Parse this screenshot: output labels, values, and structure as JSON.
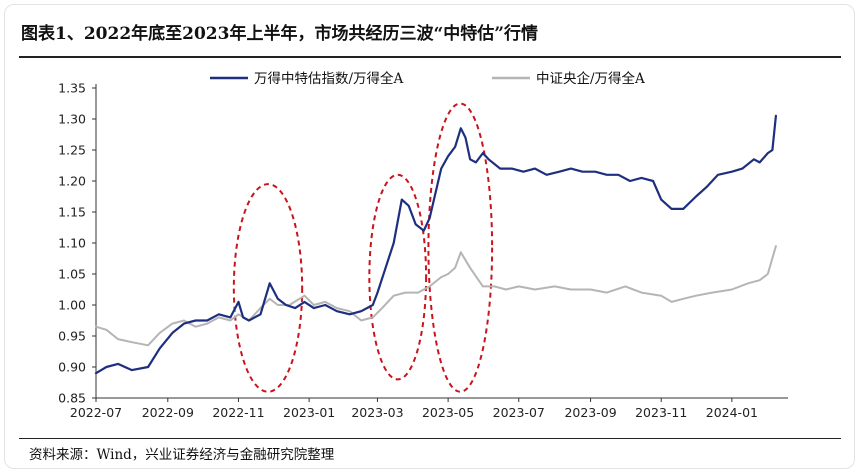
{
  "title": "图表1、2022年底至2023年上半年，市场共经历三波“中特估”行情",
  "source": "资料来源：Wind，兴业证券经济与金融研究院整理",
  "chart_data": {
    "type": "line",
    "x_ticks": [
      "2022-07",
      "2022-09",
      "2022-11",
      "2023-01",
      "2023-03",
      "2023-05",
      "2023-07",
      "2023-09",
      "2023-11",
      "2024-01"
    ],
    "y_ticks": [
      "0.85",
      "0.90",
      "0.95",
      "1.00",
      "1.05",
      "1.10",
      "1.15",
      "1.20",
      "1.25",
      "1.30",
      "1.35"
    ],
    "ylim": [
      0.85,
      1.35
    ],
    "xlim": [
      "2022-07-01",
      "2024-02-15"
    ],
    "grid": false,
    "legend_position": "top",
    "series": [
      {
        "name": "万得中特估指数/万得全A",
        "color": "#1f2f7f",
        "x": [
          "2022-07-01",
          "2022-07-10",
          "2022-07-20",
          "2022-08-01",
          "2022-08-15",
          "2022-08-25",
          "2022-09-05",
          "2022-09-15",
          "2022-09-25",
          "2022-10-05",
          "2022-10-15",
          "2022-10-25",
          "2022-11-01",
          "2022-11-05",
          "2022-11-10",
          "2022-11-20",
          "2022-11-28",
          "2022-12-05",
          "2022-12-12",
          "2022-12-20",
          "2022-12-28",
          "2023-01-05",
          "2023-01-15",
          "2023-01-25",
          "2023-02-05",
          "2023-02-15",
          "2023-02-25",
          "2023-03-01",
          "2023-03-08",
          "2023-03-15",
          "2023-03-22",
          "2023-03-28",
          "2023-04-03",
          "2023-04-10",
          "2023-04-15",
          "2023-04-20",
          "2023-04-25",
          "2023-05-01",
          "2023-05-07",
          "2023-05-12",
          "2023-05-16",
          "2023-05-20",
          "2023-05-25",
          "2023-05-31",
          "2023-06-05",
          "2023-06-15",
          "2023-06-25",
          "2023-07-05",
          "2023-07-15",
          "2023-07-25",
          "2023-08-05",
          "2023-08-15",
          "2023-08-25",
          "2023-09-05",
          "2023-09-15",
          "2023-09-25",
          "2023-10-05",
          "2023-10-15",
          "2023-10-25",
          "2023-11-01",
          "2023-11-10",
          "2023-11-20",
          "2023-12-01",
          "2023-12-10",
          "2023-12-20",
          "2024-01-01",
          "2024-01-10",
          "2024-01-20",
          "2024-01-25",
          "2024-02-01",
          "2024-02-05",
          "2024-02-08"
        ],
        "values": [
          0.89,
          0.9,
          0.905,
          0.895,
          0.9,
          0.93,
          0.955,
          0.97,
          0.975,
          0.975,
          0.985,
          0.98,
          1.005,
          0.98,
          0.975,
          0.985,
          1.035,
          1.01,
          1.0,
          0.995,
          1.005,
          0.995,
          1.0,
          0.99,
          0.985,
          0.99,
          1.0,
          1.02,
          1.06,
          1.1,
          1.17,
          1.16,
          1.13,
          1.12,
          1.14,
          1.18,
          1.22,
          1.24,
          1.255,
          1.285,
          1.27,
          1.235,
          1.23,
          1.245,
          1.235,
          1.22,
          1.22,
          1.215,
          1.22,
          1.21,
          1.215,
          1.22,
          1.215,
          1.215,
          1.21,
          1.21,
          1.2,
          1.205,
          1.2,
          1.17,
          1.155,
          1.155,
          1.175,
          1.19,
          1.21,
          1.215,
          1.22,
          1.235,
          1.23,
          1.245,
          1.25,
          1.305
        ]
      },
      {
        "name": "中证央企/万得全A",
        "color": "#b5b5b5",
        "x": [
          "2022-07-01",
          "2022-07-10",
          "2022-07-20",
          "2022-08-01",
          "2022-08-15",
          "2022-08-25",
          "2022-09-05",
          "2022-09-15",
          "2022-09-25",
          "2022-10-05",
          "2022-10-15",
          "2022-10-25",
          "2022-11-01",
          "2022-11-10",
          "2022-11-20",
          "2022-11-28",
          "2022-12-05",
          "2022-12-15",
          "2022-12-28",
          "2023-01-05",
          "2023-01-15",
          "2023-01-25",
          "2023-02-05",
          "2023-02-15",
          "2023-02-25",
          "2023-03-05",
          "2023-03-15",
          "2023-03-25",
          "2023-04-05",
          "2023-04-15",
          "2023-04-25",
          "2023-05-01",
          "2023-05-07",
          "2023-05-12",
          "2023-05-20",
          "2023-05-31",
          "2023-06-10",
          "2023-06-20",
          "2023-07-01",
          "2023-07-15",
          "2023-08-01",
          "2023-08-15",
          "2023-09-01",
          "2023-09-15",
          "2023-10-01",
          "2023-10-15",
          "2023-11-01",
          "2023-11-10",
          "2023-11-20",
          "2023-12-01",
          "2023-12-15",
          "2024-01-01",
          "2024-01-15",
          "2024-01-25",
          "2024-02-01",
          "2024-02-08"
        ],
        "values": [
          0.965,
          0.96,
          0.945,
          0.94,
          0.935,
          0.955,
          0.97,
          0.975,
          0.965,
          0.97,
          0.98,
          0.975,
          0.985,
          0.975,
          0.995,
          1.01,
          1.0,
          1.0,
          1.015,
          1.0,
          1.005,
          0.995,
          0.99,
          0.975,
          0.98,
          0.995,
          1.015,
          1.02,
          1.02,
          1.03,
          1.045,
          1.05,
          1.06,
          1.085,
          1.06,
          1.03,
          1.03,
          1.025,
          1.03,
          1.025,
          1.03,
          1.025,
          1.025,
          1.02,
          1.03,
          1.02,
          1.015,
          1.005,
          1.01,
          1.015,
          1.02,
          1.025,
          1.035,
          1.04,
          1.05,
          1.095
        ]
      }
    ]
  }
}
